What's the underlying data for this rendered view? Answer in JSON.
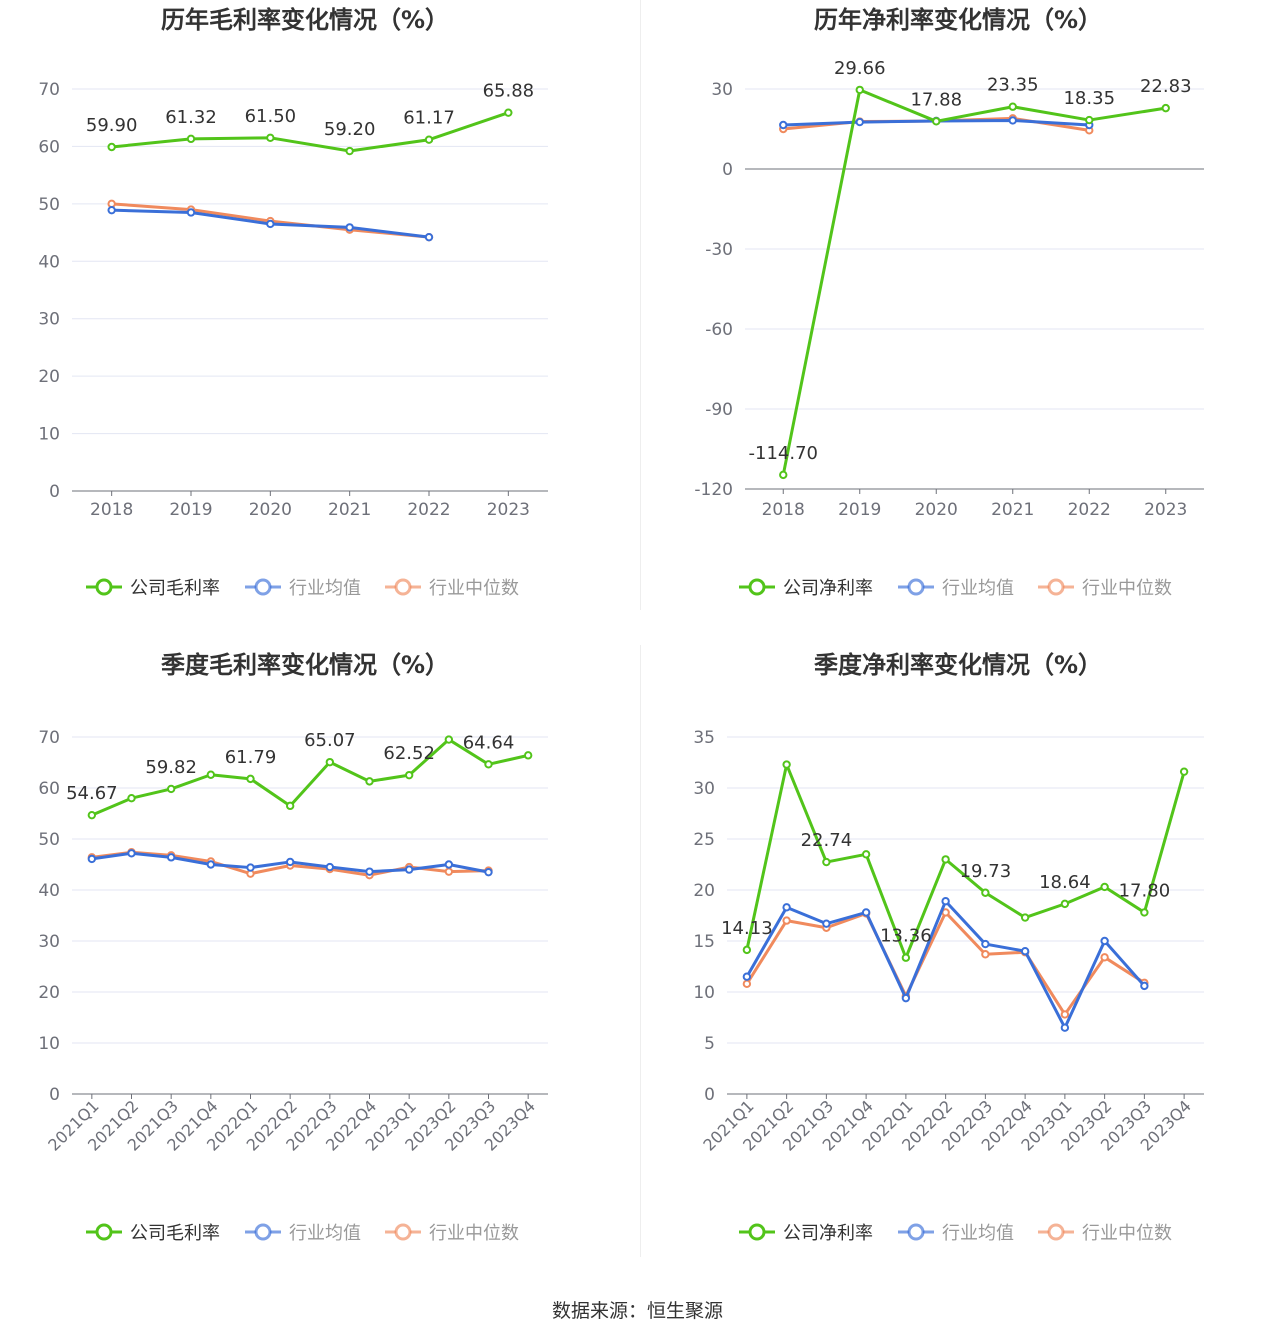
{
  "footer": {
    "source": "数据来源：恒生聚源"
  },
  "colors": {
    "company": "#52c41a",
    "avg": "#3a6fd8",
    "median": "#f08a5d"
  },
  "chart_data": [
    {
      "id": "annual-gross",
      "type": "line",
      "title": "历年毛利率变化情况（%）",
      "categories": [
        "2018",
        "2019",
        "2020",
        "2021",
        "2022",
        "2023"
      ],
      "ylim": [
        0,
        70
      ],
      "yticks": [
        0,
        10,
        20,
        30,
        40,
        50,
        60,
        70
      ],
      "xlabel_rotated": false,
      "series": [
        {
          "name": "公司毛利率",
          "values": [
            59.9,
            61.32,
            61.5,
            59.2,
            61.17,
            65.88
          ]
        },
        {
          "name": "行业均值",
          "values": [
            48.9,
            48.5,
            46.5,
            45.9,
            44.2,
            null
          ]
        },
        {
          "name": "行业中位数",
          "values": [
            50.0,
            49.0,
            47.0,
            45.5,
            44.2,
            null
          ]
        }
      ],
      "labels": [
        {
          "index": 0,
          "text": "59.90"
        },
        {
          "index": 1,
          "text": "61.32"
        },
        {
          "index": 2,
          "text": "61.50"
        },
        {
          "index": 3,
          "text": "59.20"
        },
        {
          "index": 4,
          "text": "61.17"
        },
        {
          "index": 5,
          "text": "65.88"
        }
      ]
    },
    {
      "id": "annual-net",
      "type": "line",
      "title": "历年净利率变化情况（%）",
      "categories": [
        "2018",
        "2019",
        "2020",
        "2021",
        "2022",
        "2023"
      ],
      "ylim": [
        -120,
        30
      ],
      "yticks": [
        -120,
        -90,
        -60,
        -30,
        0,
        30
      ],
      "xlabel_rotated": false,
      "series": [
        {
          "name": "公司净利率",
          "values": [
            -114.7,
            29.66,
            17.88,
            23.35,
            18.35,
            22.83
          ]
        },
        {
          "name": "行业均值",
          "values": [
            16.5,
            17.6,
            18.0,
            18.2,
            16.5,
            null
          ]
        },
        {
          "name": "行业中位数",
          "values": [
            15.0,
            17.8,
            18.0,
            19.0,
            14.5,
            null
          ]
        }
      ],
      "labels": [
        {
          "index": 0,
          "text": "-114.70"
        },
        {
          "index": 1,
          "text": "29.66"
        },
        {
          "index": 2,
          "text": "17.88"
        },
        {
          "index": 3,
          "text": "23.35"
        },
        {
          "index": 4,
          "text": "18.35"
        },
        {
          "index": 5,
          "text": "22.83"
        }
      ]
    },
    {
      "id": "quarterly-gross",
      "type": "line",
      "title": "季度毛利率变化情况（%）",
      "categories": [
        "2021Q1",
        "2021Q2",
        "2021Q3",
        "2021Q4",
        "2022Q1",
        "2022Q2",
        "2022Q3",
        "2022Q4",
        "2023Q1",
        "2023Q2",
        "2023Q3",
        "2023Q4"
      ],
      "ylim": [
        0,
        70
      ],
      "yticks": [
        0,
        10,
        20,
        30,
        40,
        50,
        60,
        70
      ],
      "xlabel_rotated": true,
      "series": [
        {
          "name": "公司毛利率",
          "values": [
            54.67,
            58.0,
            59.82,
            62.6,
            61.79,
            56.5,
            65.07,
            61.3,
            62.52,
            69.5,
            64.64,
            66.4
          ]
        },
        {
          "name": "行业均值",
          "values": [
            46.1,
            47.2,
            46.4,
            45.0,
            44.4,
            45.5,
            44.5,
            43.6,
            44.0,
            45.0,
            43.5,
            null
          ]
        },
        {
          "name": "行业中位数",
          "values": [
            46.4,
            47.4,
            46.8,
            45.6,
            43.2,
            44.8,
            44.1,
            42.9,
            44.5,
            43.6,
            43.8,
            null
          ]
        }
      ],
      "labels": [
        {
          "index": 0,
          "text": "54.67"
        },
        {
          "index": 2,
          "text": "59.82"
        },
        {
          "index": 4,
          "text": "61.79"
        },
        {
          "index": 6,
          "text": "65.07"
        },
        {
          "index": 8,
          "text": "62.52"
        },
        {
          "index": 10,
          "text": "64.64"
        }
      ]
    },
    {
      "id": "quarterly-net",
      "type": "line",
      "title": "季度净利率变化情况（%）",
      "categories": [
        "2021Q1",
        "2021Q2",
        "2021Q3",
        "2021Q4",
        "2022Q1",
        "2022Q2",
        "2022Q3",
        "2022Q4",
        "2023Q1",
        "2023Q2",
        "2023Q3",
        "2023Q4"
      ],
      "ylim": [
        0,
        35
      ],
      "yticks": [
        0,
        5,
        10,
        15,
        20,
        25,
        30,
        35
      ],
      "xlabel_rotated": true,
      "series": [
        {
          "name": "公司净利率",
          "values": [
            14.13,
            32.3,
            22.74,
            23.5,
            13.36,
            23.0,
            19.73,
            17.3,
            18.64,
            20.3,
            17.8,
            31.6
          ]
        },
        {
          "name": "行业均值",
          "values": [
            11.5,
            18.3,
            16.7,
            17.8,
            9.4,
            18.9,
            14.7,
            14.0,
            6.5,
            15.0,
            10.6,
            null
          ]
        },
        {
          "name": "行业中位数",
          "values": [
            10.8,
            17.0,
            16.3,
            17.7,
            9.6,
            17.8,
            13.7,
            13.9,
            7.8,
            13.4,
            10.9,
            null
          ]
        }
      ],
      "labels": [
        {
          "index": 0,
          "text": "14.13"
        },
        {
          "index": 2,
          "text": "22.74"
        },
        {
          "index": 4,
          "text": "13.36"
        },
        {
          "index": 6,
          "text": "19.73"
        },
        {
          "index": 8,
          "text": "18.64"
        },
        {
          "index": 10,
          "text": "17.80"
        }
      ]
    }
  ]
}
